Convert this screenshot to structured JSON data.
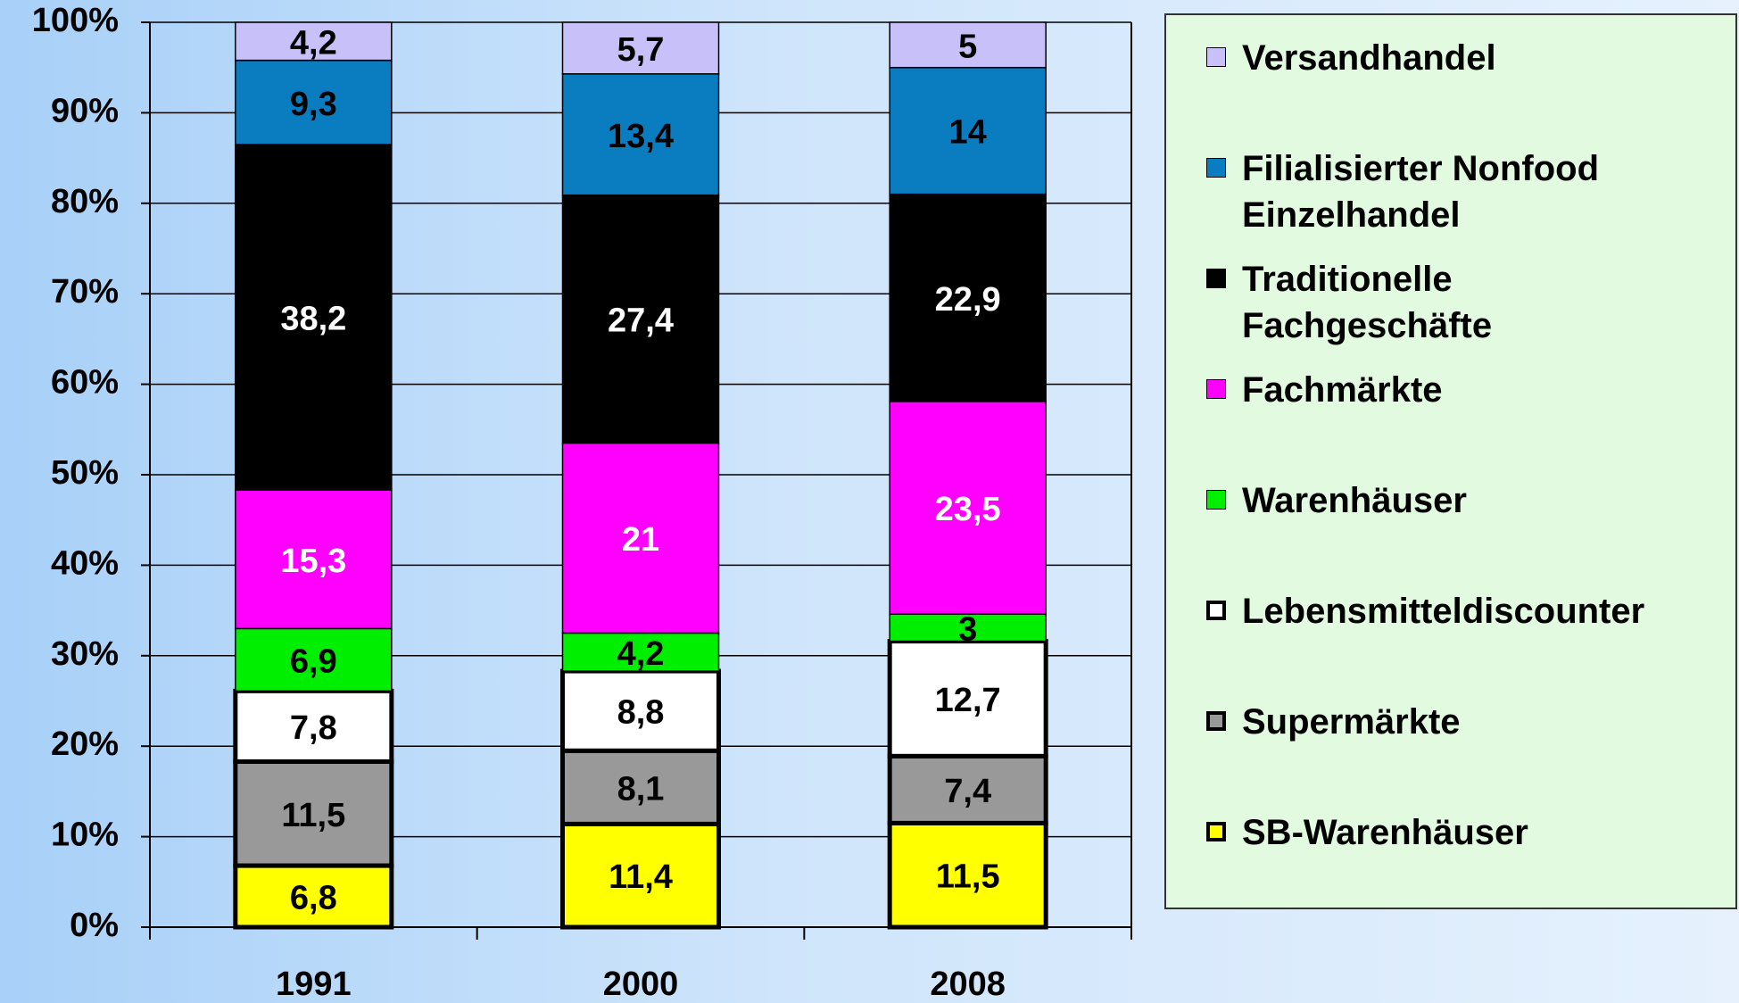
{
  "chart_data": {
    "type": "stacked_bar",
    "categories": [
      "1991",
      "2000",
      "2008"
    ],
    "series": [
      {
        "name": "SB-Warenhäuser",
        "color": "#ffff00",
        "values": [
          6.8,
          11.4,
          11.5
        ],
        "value_labels": [
          "6,8",
          "11,4",
          "11,5"
        ]
      },
      {
        "name": "Supermärkte",
        "color": "#999999",
        "values": [
          11.5,
          8.1,
          7.4
        ],
        "value_labels": [
          "11,5",
          "8,1",
          "7,4"
        ]
      },
      {
        "name": "Lebensmitteldiscounter",
        "color": "#ffffff",
        "values": [
          7.8,
          8.8,
          12.7
        ],
        "value_labels": [
          "7,8",
          "8,8",
          "12,7"
        ]
      },
      {
        "name": "Warenhäuser",
        "color": "#00ee00",
        "values": [
          6.9,
          4.2,
          3
        ],
        "value_labels": [
          "6,9",
          "4,2",
          "3"
        ]
      },
      {
        "name": "Fachmärkte",
        "color": "#ff00ff",
        "values": [
          15.3,
          21,
          23.5
        ],
        "value_labels": [
          "15,3",
          "21",
          "23,5"
        ]
      },
      {
        "name": "Traditionelle Fachgeschäfte",
        "color": "#000000",
        "values": [
          38.2,
          27.4,
          22.9
        ],
        "value_labels": [
          "38,2",
          "27,4",
          "22,9"
        ]
      },
      {
        "name": "Filialisierter Nonfood Einzelhandel",
        "color": "#0a7dc0",
        "values": [
          9.3,
          13.4,
          14
        ],
        "value_labels": [
          "9,3",
          "13,4",
          "14"
        ]
      },
      {
        "name": "Versandhandel",
        "color": "#c8c0f8",
        "values": [
          4.2,
          5.7,
          5
        ],
        "value_labels": [
          "4,2",
          "5,7",
          "5"
        ]
      }
    ],
    "ylim": [
      0,
      100
    ],
    "yticks": [
      {
        "value": 0,
        "label": "0%"
      },
      {
        "value": 10,
        "label": "10%"
      },
      {
        "value": 20,
        "label": "20%"
      },
      {
        "value": 30,
        "label": "30%"
      },
      {
        "value": 40,
        "label": "40%"
      },
      {
        "value": 50,
        "label": "50%"
      },
      {
        "value": 60,
        "label": "60%"
      },
      {
        "value": 70,
        "label": "70%"
      },
      {
        "value": 80,
        "label": "80%"
      },
      {
        "value": 90,
        "label": "90%"
      },
      {
        "value": 100,
        "label": "100%"
      }
    ],
    "grid": true
  }
}
